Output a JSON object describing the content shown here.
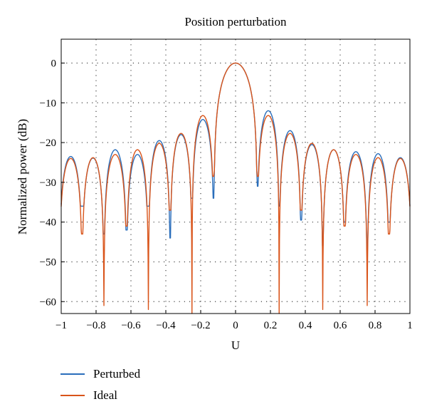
{
  "chart_data": {
    "type": "line",
    "title": "Position perturbation",
    "xlabel": "U",
    "ylabel": "Normalized power (dB)",
    "xlim": [
      -1,
      1
    ],
    "ylim": [
      -63,
      6
    ],
    "x_ticks": [
      -1,
      -0.8,
      -0.6,
      -0.4,
      -0.2,
      0,
      0.2,
      0.4,
      0.6,
      0.8,
      1
    ],
    "x_tick_labels": [
      "−1",
      "−0.8",
      "−0.6",
      "−0.4",
      "−0.2",
      "0",
      "0.2",
      "0.4",
      "0.6",
      "0.8",
      "1"
    ],
    "y_ticks": [
      0,
      -10,
      -20,
      -30,
      -40,
      -50,
      -60
    ],
    "y_tick_labels": [
      "0",
      "−10",
      "−20",
      "−30",
      "−40",
      "−50",
      "−60"
    ],
    "grid": true,
    "legend_position": "bottom-left",
    "series": [
      {
        "name": "Perturbed",
        "color": "#2a6ebb",
        "lobe_peaks": [
          -23.5,
          -23.9,
          -21.8,
          -23.0,
          -19.5,
          -18.0,
          -14.2,
          0,
          -12.0,
          -17.0,
          -20.5,
          -21.8,
          -22.3,
          -22.8,
          -23.8
        ],
        "nulls": [
          {
            "x": -0.88,
            "y": -36
          },
          {
            "x": -0.755,
            "y": -43
          },
          {
            "x": -0.625,
            "y": -42
          },
          {
            "x": -0.5,
            "y": -36
          },
          {
            "x": -0.375,
            "y": -44
          },
          {
            "x": -0.25,
            "y": -34
          },
          {
            "x": -0.125,
            "y": -34
          },
          {
            "x": 0.125,
            "y": -31
          },
          {
            "x": 0.25,
            "y": -36
          },
          {
            "x": 0.375,
            "y": -39.5
          },
          {
            "x": 0.5,
            "y": -46
          },
          {
            "x": 0.625,
            "y": -40
          },
          {
            "x": 0.755,
            "y": -47
          },
          {
            "x": 0.88,
            "y": -40
          }
        ]
      },
      {
        "name": "Ideal",
        "color": "#d9541a",
        "lobe_peaks": [
          -24.0,
          -23.8,
          -23.0,
          -21.8,
          -20.2,
          -17.7,
          -13.2,
          0,
          -13.2,
          -17.7,
          -20.2,
          -21.8,
          -23.0,
          -23.8,
          -24.0
        ],
        "nulls": [
          {
            "x": -0.88,
            "y": -43
          },
          {
            "x": -0.755,
            "y": -61
          },
          {
            "x": -0.625,
            "y": -41
          },
          {
            "x": -0.5,
            "y": -62
          },
          {
            "x": -0.375,
            "y": -37
          },
          {
            "x": -0.25,
            "y": -63
          },
          {
            "x": -0.125,
            "y": -28.5
          },
          {
            "x": 0.125,
            "y": -28.5
          },
          {
            "x": 0.25,
            "y": -63
          },
          {
            "x": 0.375,
            "y": -37
          },
          {
            "x": 0.5,
            "y": -62
          },
          {
            "x": 0.625,
            "y": -41
          },
          {
            "x": 0.755,
            "y": -61
          },
          {
            "x": 0.88,
            "y": -43
          }
        ]
      }
    ]
  }
}
